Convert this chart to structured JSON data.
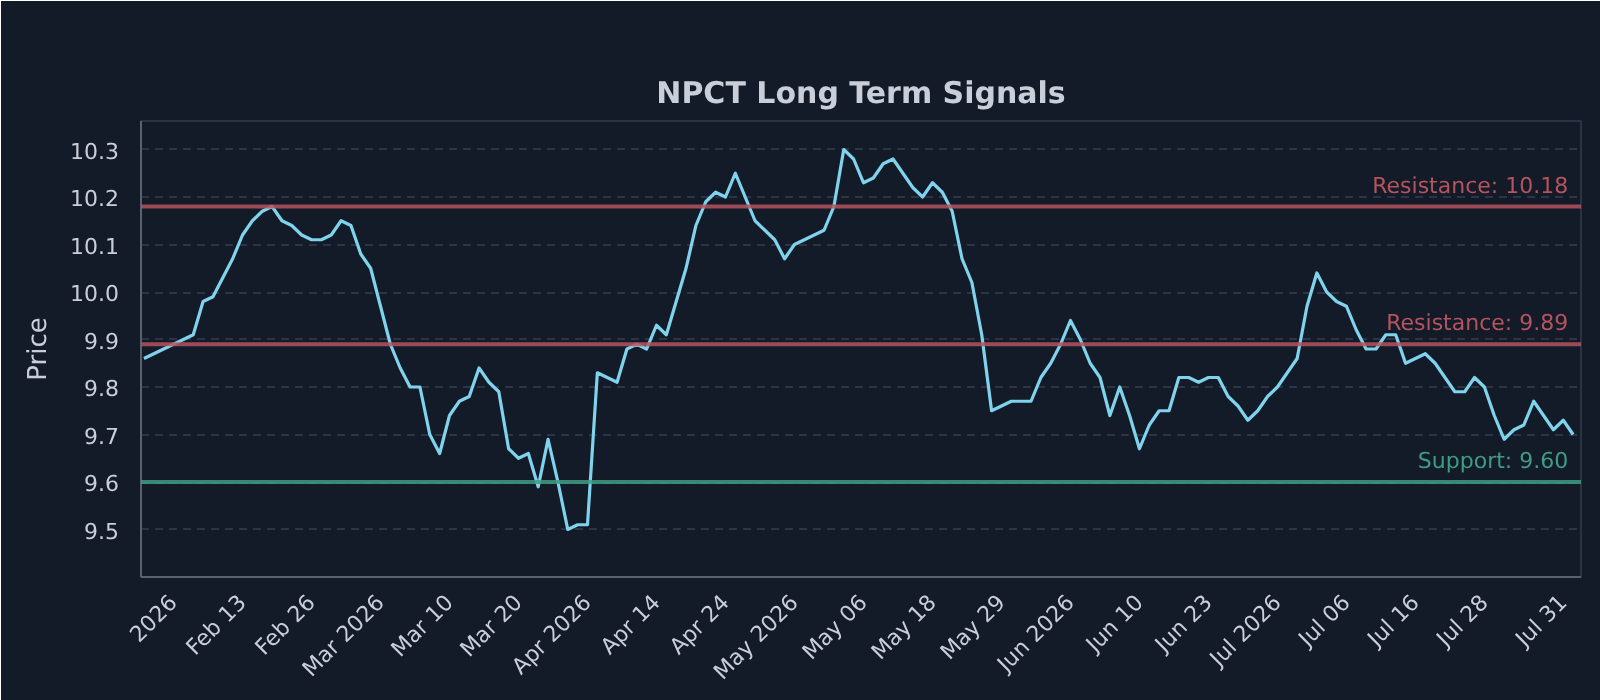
{
  "chart_data": {
    "type": "line",
    "title": "NPCT Long Term Signals",
    "ylabel": "Price",
    "categories": [
      null,
      null,
      null,
      "2026",
      null,
      null,
      null,
      null,
      null,
      null,
      "Feb 13",
      null,
      null,
      null,
      null,
      null,
      null,
      "Feb 26",
      null,
      null,
      null,
      null,
      null,
      null,
      "Mar 2026",
      null,
      null,
      null,
      null,
      null,
      null,
      "Mar 10",
      null,
      null,
      null,
      null,
      null,
      null,
      "Mar 20",
      null,
      null,
      null,
      null,
      null,
      null,
      "Apr 2026",
      null,
      null,
      null,
      null,
      null,
      null,
      "Apr 14",
      null,
      null,
      null,
      null,
      null,
      null,
      "Apr 24",
      null,
      null,
      null,
      null,
      null,
      null,
      "May 2026",
      null,
      null,
      null,
      null,
      null,
      null,
      "May 06",
      null,
      null,
      null,
      null,
      null,
      null,
      "May 18",
      null,
      null,
      null,
      null,
      null,
      null,
      "May 29",
      null,
      null,
      null,
      null,
      null,
      null,
      "Jun 2026",
      null,
      null,
      null,
      null,
      null,
      null,
      "Jun 10",
      null,
      null,
      null,
      null,
      null,
      null,
      "Jun 23",
      null,
      null,
      null,
      null,
      null,
      null,
      "Jul 2026",
      null,
      null,
      null,
      null,
      null,
      null,
      "Jul 06",
      null,
      null,
      null,
      null,
      null,
      null,
      "Jul 16",
      null,
      null,
      null,
      null,
      null,
      null,
      "Jul 28",
      null,
      null,
      null,
      null,
      null,
      null,
      null,
      "Jul 31",
      null
    ],
    "series": [
      {
        "color": "#7fd3ec",
        "values": [
          9.86,
          9.87,
          9.88,
          9.89,
          9.9,
          9.91,
          9.98,
          9.99,
          10.03,
          10.07,
          10.12,
          10.15,
          10.17,
          10.18,
          10.15,
          10.14,
          10.12,
          10.11,
          10.11,
          10.12,
          10.15,
          10.14,
          10.08,
          10.05,
          9.97,
          9.89,
          9.84,
          9.8,
          9.8,
          9.7,
          9.66,
          9.74,
          9.77,
          9.78,
          9.84,
          9.81,
          9.79,
          9.67,
          9.65,
          9.66,
          9.59,
          9.69,
          9.6,
          9.5,
          9.51,
          9.51,
          9.83,
          9.82,
          9.81,
          9.88,
          9.89,
          9.88,
          9.93,
          9.91,
          9.98,
          10.05,
          10.14,
          10.19,
          10.21,
          10.2,
          10.25,
          10.2,
          10.15,
          10.13,
          10.11,
          10.07,
          10.1,
          10.11,
          10.12,
          10.13,
          10.18,
          10.3,
          10.28,
          10.23,
          10.24,
          10.27,
          10.28,
          10.25,
          10.22,
          10.2,
          10.23,
          10.21,
          10.17,
          10.07,
          10.02,
          9.91,
          9.75,
          9.76,
          9.77,
          9.77,
          9.77,
          9.82,
          9.85,
          9.89,
          9.94,
          9.9,
          9.85,
          9.82,
          9.74,
          9.8,
          9.74,
          9.67,
          9.72,
          9.75,
          9.75,
          9.82,
          9.82,
          9.81,
          9.82,
          9.82,
          9.78,
          9.76,
          9.73,
          9.75,
          9.78,
          9.8,
          9.83,
          9.86,
          9.97,
          10.04,
          10.0,
          9.98,
          9.97,
          9.92,
          9.88,
          9.88,
          9.91,
          9.91,
          9.85,
          9.86,
          9.87,
          9.85,
          9.82,
          9.79,
          9.79,
          9.82,
          9.8,
          9.74,
          9.69,
          9.71,
          9.72,
          9.77,
          9.74,
          9.71,
          9.73,
          9.7
        ]
      }
    ],
    "ylim": [
      9.4,
      10.36
    ],
    "yticks": [
      9.5,
      9.6,
      9.7,
      9.8,
      9.9,
      {
        "value": 10.0,
        "label": "10.0"
      },
      10.1,
      10.2,
      10.3
    ],
    "grid": "y",
    "ref_lines": [
      {
        "axis": "y",
        "value": 10.18,
        "label": "Resistance: 10.18",
        "color": "#b5545e"
      },
      {
        "axis": "y",
        "value": 9.89,
        "label": "Resistance: 9.89",
        "color": "#b5545e"
      },
      {
        "axis": "y",
        "value": 9.6,
        "label": "Support: 9.60",
        "color": "#3f9c84"
      }
    ]
  }
}
